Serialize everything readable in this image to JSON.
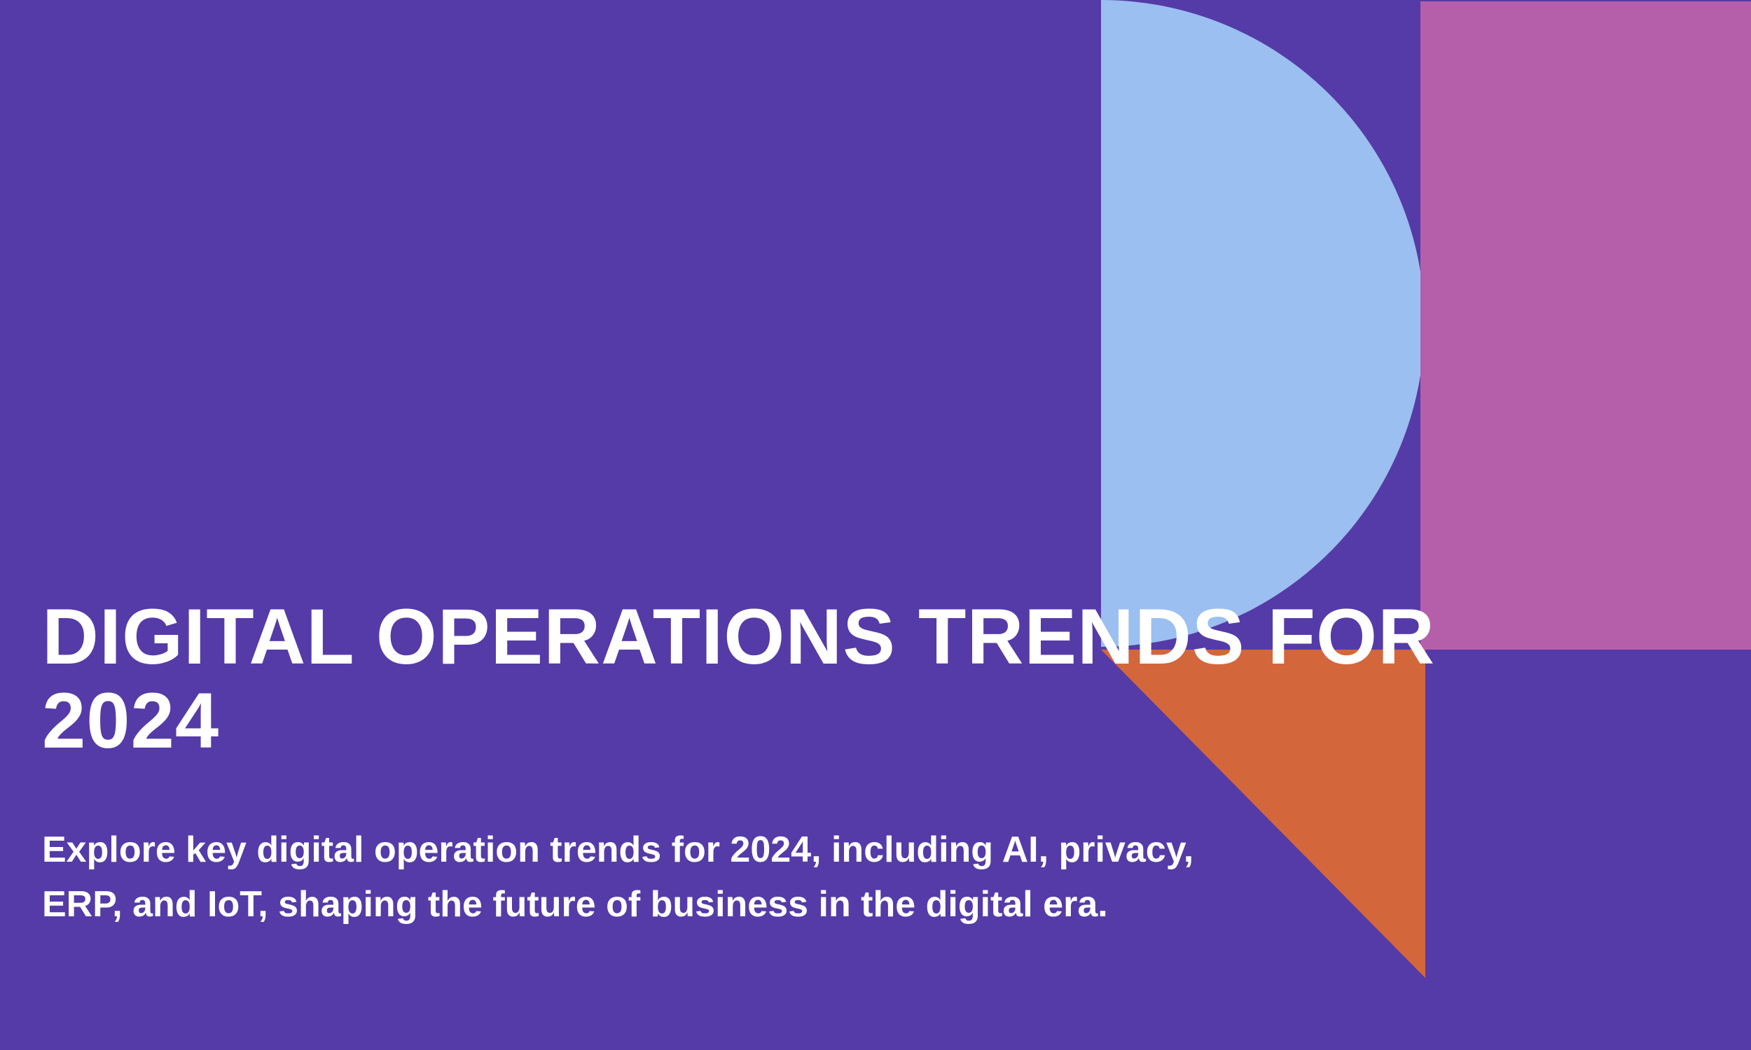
{
  "colors": {
    "background": "#553ba7",
    "half_circle": "#9bbff0",
    "rectangle": "#b55fab",
    "triangle": "#d4663c",
    "text": "#ffffff"
  },
  "hero": {
    "title": "DIGITAL OPERATIONS TRENDS FOR 2024",
    "subtitle": "Explore key digital operation trends for 2024, including AI, privacy, ERP, and IoT, shaping the future of business in the digital era."
  }
}
